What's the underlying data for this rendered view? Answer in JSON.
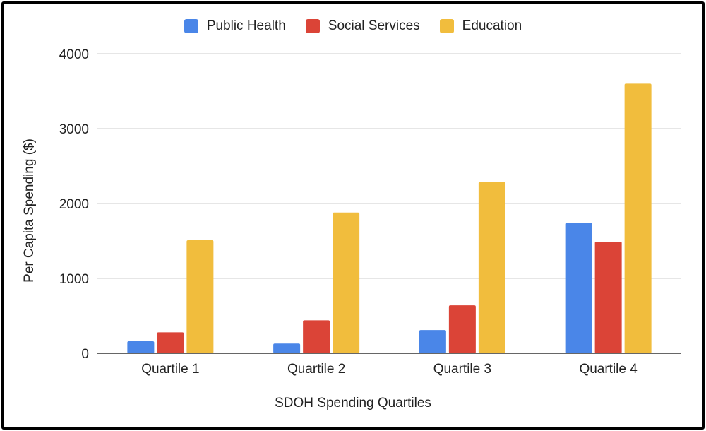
{
  "chart_data": {
    "type": "bar",
    "title": "",
    "xlabel": "SDOH Spending Quartiles",
    "ylabel": "Per Capita Spending ($)",
    "categories": [
      "Quartile 1",
      "Quartile 2",
      "Quartile 3",
      "Quartile 4"
    ],
    "ylim": [
      0,
      4000
    ],
    "yticks": [
      "0",
      "1000",
      "2000",
      "3000",
      "4000"
    ],
    "grid": true,
    "legend_position": "top-center",
    "series": [
      {
        "name": "Public Health",
        "color": "#4a86e8",
        "values": [
          160,
          130,
          310,
          1740
        ]
      },
      {
        "name": "Social Services",
        "color": "#db4437",
        "values": [
          280,
          440,
          640,
          1490
        ]
      },
      {
        "name": "Education",
        "color": "#f1bd3d",
        "values": [
          1510,
          1880,
          2290,
          3600
        ]
      }
    ]
  }
}
